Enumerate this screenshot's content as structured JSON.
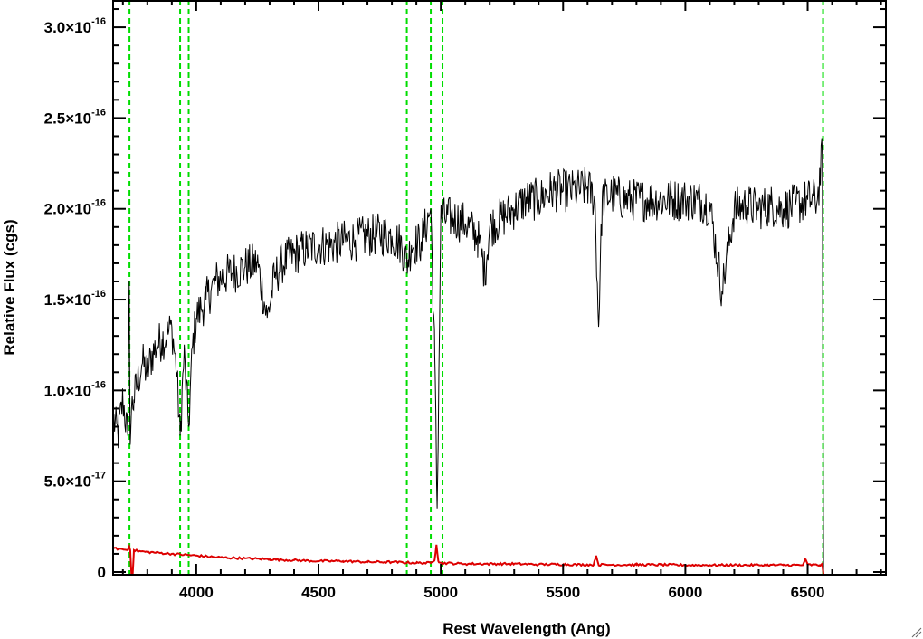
{
  "chart_data": {
    "type": "line",
    "title": "",
    "xlabel": "Rest Wavelength (Ang)",
    "ylabel": "Relative Flux (cgs)",
    "xlim": [
      3660,
      6820
    ],
    "ylim": [
      -1.5e-18,
      3.15e-16
    ],
    "x_ticks": [
      {
        "value": 4000,
        "label": "4000"
      },
      {
        "value": 4500,
        "label": "4500"
      },
      {
        "value": 5000,
        "label": "5000"
      },
      {
        "value": 5500,
        "label": "5500"
      },
      {
        "value": 6000,
        "label": "6000"
      },
      {
        "value": 6500,
        "label": "6500"
      }
    ],
    "y_ticks": [
      {
        "value": 0,
        "mantissa": "0",
        "exponent": ""
      },
      {
        "value": 5e-17,
        "mantissa": "5.0×10",
        "exponent": "-17"
      },
      {
        "value": 1e-16,
        "mantissa": "1.0×10",
        "exponent": "-16"
      },
      {
        "value": 1.5e-16,
        "mantissa": "1.5×10",
        "exponent": "-16"
      },
      {
        "value": 2e-16,
        "mantissa": "2.0×10",
        "exponent": "-16"
      },
      {
        "value": 2.5e-16,
        "mantissa": "2.5×10",
        "exponent": "-16"
      },
      {
        "value": 3e-16,
        "mantissa": "3.0×10",
        "exponent": "-16"
      }
    ],
    "vertical_lines": {
      "color": "#00dd00",
      "style": "dashed",
      "x": [
        3727,
        3934,
        3969,
        4861,
        4959,
        5007,
        6563
      ]
    },
    "series": [
      {
        "color": "#000000",
        "x": [
          3660,
          3680,
          3700,
          3720,
          3726,
          3730,
          3735,
          3745,
          3760,
          3780,
          3800,
          3820,
          3840,
          3860,
          3880,
          3900,
          3920,
          3934,
          3950,
          3969,
          3985,
          4000,
          4020,
          4040,
          4060,
          4080,
          4100,
          4150,
          4200,
          4250,
          4290,
          4320,
          4350,
          4400,
          4450,
          4500,
          4550,
          4600,
          4650,
          4700,
          4750,
          4800,
          4840,
          4861,
          4880,
          4920,
          4959,
          4975,
          4985,
          5000,
          5050,
          5100,
          5150,
          5180,
          5200,
          5250,
          5300,
          5350,
          5400,
          5450,
          5500,
          5550,
          5600,
          5630,
          5645,
          5660,
          5700,
          5750,
          5800,
          5850,
          5900,
          5950,
          6000,
          6050,
          6100,
          6150,
          6200,
          6250,
          6300,
          6350,
          6400,
          6450,
          6500,
          6540,
          6560,
          6565
        ],
        "y": [
          8.5e-17,
          7.5e-17,
          9.5e-17,
          7.5e-17,
          1.6e-16,
          7e-17,
          9e-17,
          9.5e-17,
          1.05e-16,
          1.15e-16,
          1.1e-16,
          1.2e-16,
          1.25e-16,
          1.28e-16,
          1.3e-16,
          1.35e-16,
          1.1e-16,
          7.5e-17,
          1.2e-16,
          8e-17,
          1.25e-16,
          1.4e-16,
          1.45e-16,
          1.5e-16,
          1.55e-16,
          1.6e-16,
          1.62e-16,
          1.65e-16,
          1.68e-16,
          1.7e-16,
          1.4e-16,
          1.62e-16,
          1.7e-16,
          1.75e-16,
          1.78e-16,
          1.8e-16,
          1.8e-16,
          1.82e-16,
          1.83e-16,
          1.85e-16,
          1.86e-16,
          1.85e-16,
          1.8e-16,
          1.7e-16,
          1.8e-16,
          1.82e-16,
          2e-16,
          1.2e-16,
          3.5e-17,
          1.95e-16,
          1.95e-16,
          1.92e-16,
          1.85e-16,
          1.65e-16,
          1.9e-16,
          1.95e-16,
          2e-16,
          2.05e-16,
          2.05e-16,
          2.1e-16,
          2.1e-16,
          2.1e-16,
          2.12e-16,
          2.05e-16,
          1.35e-16,
          2.05e-16,
          2.08e-16,
          2.05e-16,
          2.05e-16,
          2.05e-16,
          2.05e-16,
          2.05e-16,
          2.05e-16,
          2.05e-16,
          2.02e-16,
          1.55e-16,
          2e-16,
          2.02e-16,
          2e-16,
          2.02e-16,
          2e-16,
          2.02e-16,
          2.05e-16,
          2.05e-16,
          2.3e-16,
          0
        ]
      },
      {
        "color": "#dd0000",
        "x": [
          3660,
          3700,
          3720,
          3726,
          3730,
          3735,
          3740,
          3745,
          3760,
          3800,
          3900,
          4000,
          4100,
          4200,
          4300,
          4400,
          4500,
          4600,
          4700,
          4800,
          4900,
          4959,
          4975,
          4982,
          4990,
          5000,
          5100,
          5200,
          5300,
          5400,
          5500,
          5600,
          5625,
          5635,
          5645,
          5700,
          5800,
          5900,
          6000,
          6100,
          6200,
          6300,
          6400,
          6480,
          6490,
          6500,
          6550,
          6560,
          6565,
          6580,
          6700,
          6820
        ],
        "y": [
          1.3e-17,
          1.25e-17,
          1.2e-17,
          1.4e-17,
          1.2e-17,
          -1.5e-18,
          -1.5e-18,
          1.2e-17,
          1.15e-17,
          1.1e-17,
          1e-17,
          9e-18,
          8e-18,
          7.5e-18,
          7e-18,
          6.5e-18,
          6e-18,
          6e-18,
          5.5e-18,
          5.5e-18,
          5e-18,
          5e-18,
          7e-18,
          1.5e-17,
          6e-18,
          5e-18,
          4.5e-18,
          4.5e-18,
          4.5e-18,
          4.2e-18,
          4.2e-18,
          4e-18,
          4e-18,
          9e-18,
          4e-18,
          4e-18,
          4e-18,
          4e-18,
          3.8e-18,
          3.8e-18,
          3.8e-18,
          3.8e-18,
          3.8e-18,
          3.8e-18,
          7e-18,
          4e-18,
          3.8e-18,
          4e-18,
          -1.5e-18,
          -1.5e-18,
          -1.5e-18,
          -1.5e-18
        ]
      }
    ]
  }
}
